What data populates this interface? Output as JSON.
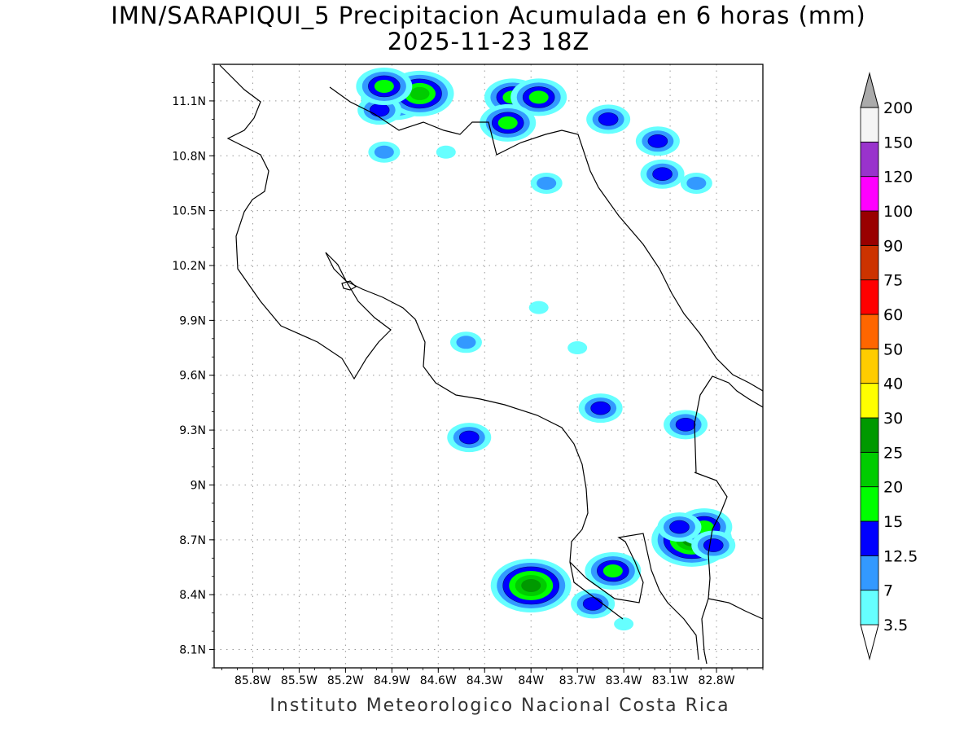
{
  "title": {
    "line1": "IMN/SARAPIQUI_5 Precipitacion Acumulada en 6 horas (mm)",
    "line2": "2025-11-23 18Z"
  },
  "footer": "Instituto Meteorologico Nacional Costa Rica",
  "map": {
    "lon_range": [
      -86.05,
      -82.5
    ],
    "lat_range": [
      8.0,
      11.3
    ],
    "lat_ticks": [
      {
        "value": 11.1,
        "label": "11.1N"
      },
      {
        "value": 10.8,
        "label": "10.8N"
      },
      {
        "value": 10.5,
        "label": "10.5N"
      },
      {
        "value": 10.2,
        "label": "10.2N"
      },
      {
        "value": 9.9,
        "label": "9.9N"
      },
      {
        "value": 9.6,
        "label": "9.6N"
      },
      {
        "value": 9.3,
        "label": "9.3N"
      },
      {
        "value": 9.0,
        "label": "9N"
      },
      {
        "value": 8.7,
        "label": "8.7N"
      },
      {
        "value": 8.4,
        "label": "8.4N"
      },
      {
        "value": 8.1,
        "label": "8.1N"
      }
    ],
    "lon_ticks": [
      {
        "value": -85.8,
        "label": "85.8W"
      },
      {
        "value": -85.5,
        "label": "85.5W"
      },
      {
        "value": -85.2,
        "label": "85.2W"
      },
      {
        "value": -84.9,
        "label": "84.9W"
      },
      {
        "value": -84.6,
        "label": "84.6W"
      },
      {
        "value": -84.3,
        "label": "84.3W"
      },
      {
        "value": -84.0,
        "label": "84W"
      },
      {
        "value": -83.7,
        "label": "83.7W"
      },
      {
        "value": -83.4,
        "label": "83.4W"
      },
      {
        "value": -83.1,
        "label": "83.1W"
      },
      {
        "value": -82.8,
        "label": "82.8W"
      }
    ],
    "grid": "dotted",
    "precip_cells": [
      {
        "lon": -84.88,
        "lat": 11.12,
        "level": 5
      },
      {
        "lon": -84.72,
        "lat": 11.14,
        "level": 5
      },
      {
        "lon": -84.98,
        "lat": 11.05,
        "level": 3
      },
      {
        "lon": -84.95,
        "lat": 11.18,
        "level": 4
      },
      {
        "lon": -84.12,
        "lat": 11.12,
        "level": 4
      },
      {
        "lon": -83.95,
        "lat": 11.12,
        "level": 4
      },
      {
        "lon": -84.15,
        "lat": 10.98,
        "level": 4
      },
      {
        "lon": -83.5,
        "lat": 11.0,
        "level": 3
      },
      {
        "lon": -83.18,
        "lat": 10.88,
        "level": 3
      },
      {
        "lon": -83.15,
        "lat": 10.7,
        "level": 3
      },
      {
        "lon": -82.93,
        "lat": 10.65,
        "level": 2
      },
      {
        "lon": -83.9,
        "lat": 10.65,
        "level": 2
      },
      {
        "lon": -84.95,
        "lat": 10.82,
        "level": 2
      },
      {
        "lon": -84.55,
        "lat": 10.82,
        "level": 1
      },
      {
        "lon": -84.4,
        "lat": 9.26,
        "level": 3
      },
      {
        "lon": -83.55,
        "lat": 9.42,
        "level": 3
      },
      {
        "lon": -83.0,
        "lat": 9.33,
        "level": 3
      },
      {
        "lon": -83.95,
        "lat": 9.97,
        "level": 1
      },
      {
        "lon": -84.0,
        "lat": 8.45,
        "level": 6
      },
      {
        "lon": -83.47,
        "lat": 8.53,
        "level": 4
      },
      {
        "lon": -82.96,
        "lat": 8.7,
        "level": 6
      },
      {
        "lon": -82.88,
        "lat": 8.77,
        "level": 4
      },
      {
        "lon": -83.04,
        "lat": 8.77,
        "level": 3
      },
      {
        "lon": -82.82,
        "lat": 8.67,
        "level": 3
      },
      {
        "lon": -83.6,
        "lat": 8.35,
        "level": 3
      },
      {
        "lon": -83.4,
        "lat": 8.24,
        "level": 1
      },
      {
        "lon": -84.42,
        "lat": 9.78,
        "level": 2
      },
      {
        "lon": -83.7,
        "lat": 9.75,
        "level": 1
      }
    ]
  },
  "colorbar": {
    "levels": [
      {
        "label": "3.5",
        "color": "#66ffff"
      },
      {
        "label": "7",
        "color": "#3399ff"
      },
      {
        "label": "12.5",
        "color": "#0000ff"
      },
      {
        "label": "15",
        "color": "#00ff00"
      },
      {
        "label": "20",
        "color": "#00cc00"
      },
      {
        "label": "25",
        "color": "#009900"
      },
      {
        "label": "30",
        "color": "#ffff00"
      },
      {
        "label": "40",
        "color": "#ffcc00"
      },
      {
        "label": "50",
        "color": "#ff6600"
      },
      {
        "label": "60",
        "color": "#ff0000"
      },
      {
        "label": "75",
        "color": "#cc3300"
      },
      {
        "label": "90",
        "color": "#990000"
      },
      {
        "label": "100",
        "color": "#ff00ff"
      },
      {
        "label": "120",
        "color": "#9933cc"
      },
      {
        "label": "150",
        "color": "#f5f5f5"
      },
      {
        "label": "200",
        "color": "#aaaaaa"
      }
    ]
  }
}
